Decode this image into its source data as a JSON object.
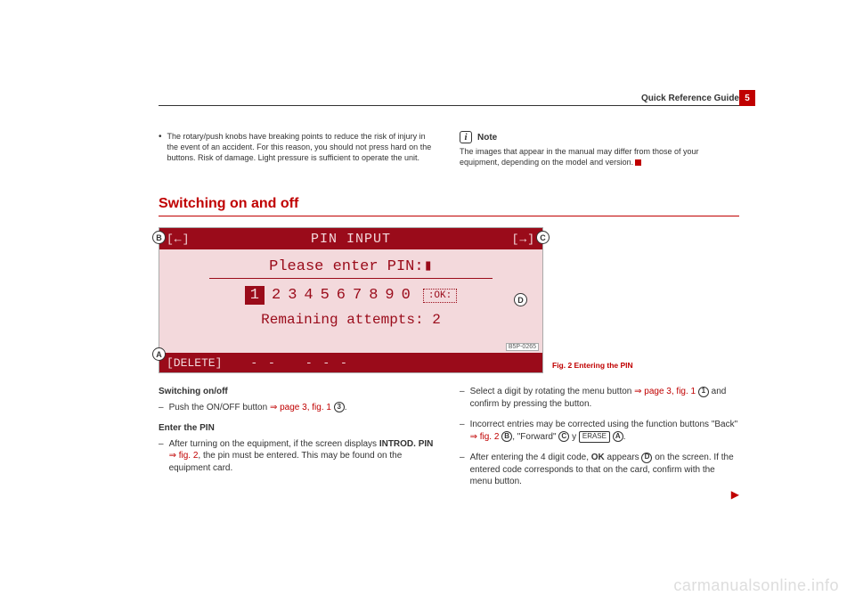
{
  "header": {
    "title": "Quick Reference Guide",
    "page_number": "5"
  },
  "top_left": {
    "bullet": "•",
    "text": "The rotary/push knobs have breaking points to reduce the risk of injury in the event of an accident. For this reason, you should not press hard on the buttons. Risk of damage. Light pressure is sufficient to operate the unit."
  },
  "note": {
    "icon": "i",
    "label": "Note",
    "text": "The images that appear in the manual may differ from those of your equipment, depending on the model and version."
  },
  "section": {
    "title": "Switching on and off"
  },
  "figure": {
    "arrow_left": "[←]",
    "title": "PIN INPUT",
    "arrow_right": "[→]",
    "prompt": "Please enter PIN:▮",
    "numbers": [
      "1",
      "2",
      "3",
      "4",
      "5",
      "6",
      "7",
      "8",
      "9",
      "0"
    ],
    "ok": ":OK:",
    "remain": "Remaining attempts: 2",
    "delete": "[DELETE]",
    "seg1": "- -",
    "seg2": "- - -",
    "ref": "B5P-0265",
    "callouts": {
      "A": "A",
      "B": "B",
      "C": "C",
      "D": "D"
    },
    "caption": "Fig. 2   Entering the PIN"
  },
  "left_body": {
    "h1": "Switching on/off",
    "p1_a": "Push the ON/OFF button ",
    "p1_xref": "⇒ page 3, fig. 1",
    "p1_circ": "3",
    "p1_end": ".",
    "h2": "Enter the PIN",
    "p2_a": "After turning on the equipment, if the screen displays ",
    "p2_b": "INTROD. PIN",
    "p2_xref": " ⇒ fig. 2",
    "p2_c": ", the pin must be entered. This may be found on the equipment card."
  },
  "right_body": {
    "p1_a": "Select a digit by rotating the menu button ",
    "p1_xref": "⇒ page 3, fig. 1",
    "p1_circ": "1",
    "p1_b": " and confirm by pressing the button.",
    "p2_a": "Incorrect entries may be corrected using the function buttons \"Back\" ",
    "p2_xref": "⇒ fig. 2",
    "p2_circB": "B",
    "p2_mid": ", \"Forward\" ",
    "p2_circC": "C",
    "p2_y": " y ",
    "p2_key": "ERASE",
    "p2_circA": "A",
    "p2_end": ".",
    "p3_a": "After entering the 4 digit code, ",
    "p3_ok": "OK",
    "p3_b": " appears ",
    "p3_circD": "D",
    "p3_c": " on the screen. If the entered code corresponds to that on the card, confirm with the menu button."
  },
  "watermark": "carmanualsonline.info",
  "cont": "▶"
}
